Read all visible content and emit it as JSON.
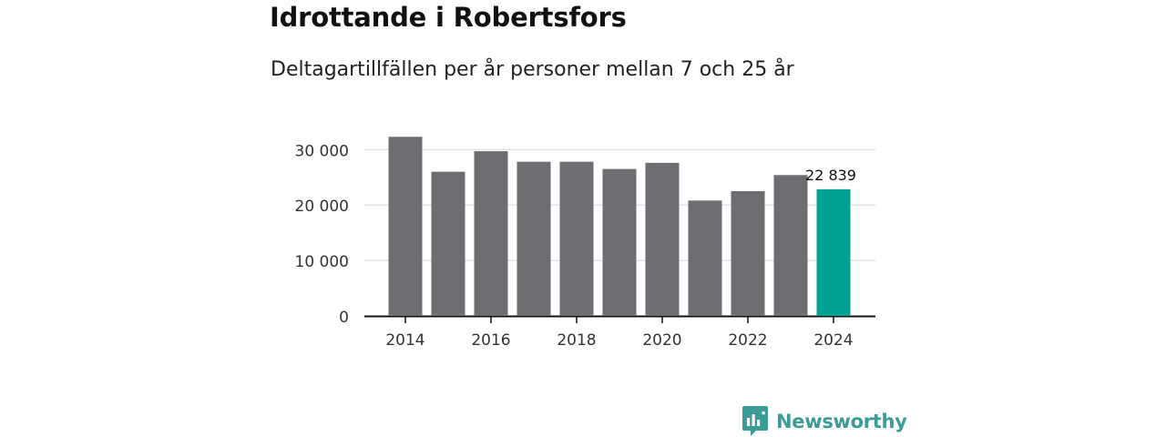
{
  "chart_data": {
    "type": "bar",
    "title": "Idrottande i Robertsfors",
    "subtitle": "Deltagartillfällen per år personer mellan 7 och 25 år",
    "categories": [
      2014,
      2015,
      2016,
      2017,
      2018,
      2019,
      2020,
      2021,
      2022,
      2023,
      2024
    ],
    "values": [
      32300,
      26000,
      29700,
      27800,
      27800,
      26500,
      27600,
      20800,
      22500,
      25400,
      22839
    ],
    "x_tick_labels": [
      "2014",
      "2016",
      "2018",
      "2020",
      "2022",
      "2024"
    ],
    "y_ticks": [
      0,
      10000,
      20000,
      30000
    ],
    "y_tick_labels": [
      "0",
      "10 000",
      "20 000",
      "30 000"
    ],
    "ylim": [
      0,
      33000
    ],
    "grid": true,
    "highlight_index": 10,
    "highlight_label": "22 839",
    "colors": {
      "bar": "#6d6d72",
      "highlight": "#00a294",
      "grid": "#d8d8d8",
      "axis": "#111111",
      "tick_text": "#333333"
    }
  },
  "brand": {
    "name": "Newsworthy",
    "color": "#3b9b96",
    "icon": "newsworthy-logo-icon"
  }
}
